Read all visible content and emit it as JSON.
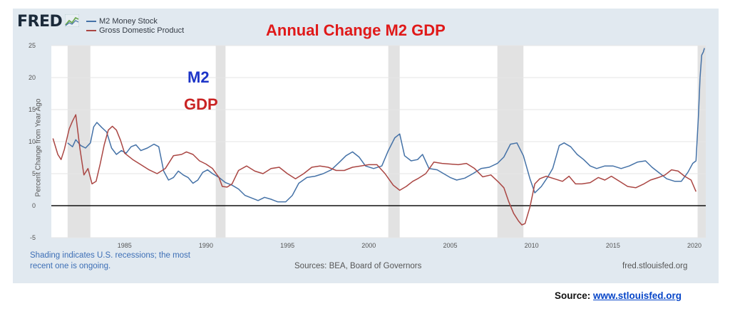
{
  "header": {
    "logo_text": "FRED",
    "title": "Annual Change M2 GDP"
  },
  "legend": [
    {
      "name": "M2 Money Stock",
      "color": "#4572a7"
    },
    {
      "name": "Gross Domestic Product",
      "color": "#aa4643"
    }
  ],
  "overlay_labels": {
    "m2": "M2",
    "gdp": "GDP"
  },
  "footer": {
    "note": "Shading indicates U.S. recessions; the most recent one is ongoing.",
    "sources": "Sources: BEA, Board of Governors",
    "fred_url": "fred.stlouisfed.org",
    "source_prefix": "Source:",
    "source_link": "www.stlouisfed.org"
  },
  "chart_data": {
    "type": "line",
    "title": "Annual Change M2 GDP",
    "ylabel": "Percent Change from Year Ago",
    "xlabel": "",
    "xlim": [
      1980.5,
      2020.7
    ],
    "ylim": [
      -5,
      25
    ],
    "x_ticks": [
      1985,
      1990,
      1995,
      2000,
      2005,
      2010,
      2015,
      2020
    ],
    "y_ticks": [
      -5,
      0,
      5,
      10,
      15,
      20,
      25
    ],
    "grid": true,
    "legend_position": "top-left",
    "recessions": [
      [
        1981.5,
        1982.9
      ],
      [
        1990.6,
        1991.2
      ],
      [
        2001.2,
        2001.9
      ],
      [
        2007.9,
        2009.5
      ],
      [
        2020.2,
        2020.7
      ]
    ],
    "series": [
      {
        "name": "M2 Money Stock",
        "color": "#4572a7",
        "points": [
          [
            1981.5,
            9.8
          ],
          [
            1981.8,
            9.2
          ],
          [
            1982.0,
            10.3
          ],
          [
            1982.3,
            9.4
          ],
          [
            1982.6,
            9.0
          ],
          [
            1982.9,
            9.8
          ],
          [
            1983.1,
            12.3
          ],
          [
            1983.3,
            13.0
          ],
          [
            1983.6,
            12.2
          ],
          [
            1983.9,
            11.5
          ],
          [
            1984.2,
            9.0
          ],
          [
            1984.5,
            8.0
          ],
          [
            1984.8,
            8.6
          ],
          [
            1985.1,
            8.2
          ],
          [
            1985.4,
            9.2
          ],
          [
            1985.7,
            9.5
          ],
          [
            1986.0,
            8.6
          ],
          [
            1986.4,
            9.0
          ],
          [
            1986.8,
            9.6
          ],
          [
            1987.1,
            9.2
          ],
          [
            1987.4,
            5.4
          ],
          [
            1987.7,
            4.0
          ],
          [
            1988.0,
            4.4
          ],
          [
            1988.3,
            5.4
          ],
          [
            1988.6,
            4.8
          ],
          [
            1988.9,
            4.4
          ],
          [
            1989.2,
            3.5
          ],
          [
            1989.5,
            4.0
          ],
          [
            1989.8,
            5.2
          ],
          [
            1990.1,
            5.6
          ],
          [
            1990.4,
            5.0
          ],
          [
            1990.8,
            4.4
          ],
          [
            1991.2,
            3.6
          ],
          [
            1991.6,
            3.2
          ],
          [
            1992.0,
            2.6
          ],
          [
            1992.4,
            1.6
          ],
          [
            1992.8,
            1.2
          ],
          [
            1993.2,
            0.8
          ],
          [
            1993.6,
            1.3
          ],
          [
            1994.0,
            1.0
          ],
          [
            1994.4,
            0.6
          ],
          [
            1994.9,
            0.6
          ],
          [
            1995.3,
            1.6
          ],
          [
            1995.7,
            3.5
          ],
          [
            1996.2,
            4.4
          ],
          [
            1996.7,
            4.6
          ],
          [
            1997.2,
            5.0
          ],
          [
            1997.7,
            5.6
          ],
          [
            1998.2,
            6.8
          ],
          [
            1998.6,
            7.8
          ],
          [
            1999.0,
            8.4
          ],
          [
            1999.4,
            7.6
          ],
          [
            1999.8,
            6.2
          ],
          [
            2000.3,
            5.8
          ],
          [
            2000.8,
            6.2
          ],
          [
            2001.2,
            8.6
          ],
          [
            2001.6,
            10.6
          ],
          [
            2001.9,
            11.2
          ],
          [
            2002.2,
            7.8
          ],
          [
            2002.6,
            7.0
          ],
          [
            2003.0,
            7.2
          ],
          [
            2003.3,
            8.0
          ],
          [
            2003.7,
            5.8
          ],
          [
            2004.2,
            5.6
          ],
          [
            2004.6,
            5.0
          ],
          [
            2005.0,
            4.4
          ],
          [
            2005.4,
            4.0
          ],
          [
            2005.9,
            4.3
          ],
          [
            2006.4,
            5.0
          ],
          [
            2006.9,
            5.8
          ],
          [
            2007.4,
            6.0
          ],
          [
            2007.9,
            6.6
          ],
          [
            2008.3,
            7.6
          ],
          [
            2008.7,
            9.6
          ],
          [
            2009.1,
            9.8
          ],
          [
            2009.5,
            7.8
          ],
          [
            2009.9,
            4.2
          ],
          [
            2010.2,
            2.0
          ],
          [
            2010.6,
            3.0
          ],
          [
            2011.0,
            4.5
          ],
          [
            2011.3,
            5.8
          ],
          [
            2011.7,
            9.4
          ],
          [
            2012.0,
            9.8
          ],
          [
            2012.4,
            9.2
          ],
          [
            2012.8,
            8.0
          ],
          [
            2013.2,
            7.2
          ],
          [
            2013.6,
            6.2
          ],
          [
            2014.0,
            5.8
          ],
          [
            2014.5,
            6.2
          ],
          [
            2015.0,
            6.2
          ],
          [
            2015.5,
            5.8
          ],
          [
            2016.0,
            6.2
          ],
          [
            2016.5,
            6.8
          ],
          [
            2017.0,
            7.0
          ],
          [
            2017.4,
            6.0
          ],
          [
            2017.9,
            5.0
          ],
          [
            2018.3,
            4.2
          ],
          [
            2018.8,
            3.8
          ],
          [
            2019.2,
            3.8
          ],
          [
            2019.6,
            5.2
          ],
          [
            2019.9,
            6.6
          ],
          [
            2020.1,
            7.0
          ],
          [
            2020.25,
            14.0
          ],
          [
            2020.35,
            20.0
          ],
          [
            2020.45,
            23.5
          ],
          [
            2020.55,
            24.0
          ],
          [
            2020.62,
            24.6
          ]
        ]
      },
      {
        "name": "Gross Domestic Product",
        "color": "#aa4643",
        "points": [
          [
            1980.6,
            10.5
          ],
          [
            1980.9,
            8.0
          ],
          [
            1981.1,
            7.2
          ],
          [
            1981.3,
            8.8
          ],
          [
            1981.6,
            12.0
          ],
          [
            1981.8,
            13.2
          ],
          [
            1982.0,
            14.2
          ],
          [
            1982.25,
            9.0
          ],
          [
            1982.5,
            4.8
          ],
          [
            1982.75,
            5.8
          ],
          [
            1983.0,
            3.4
          ],
          [
            1983.25,
            3.8
          ],
          [
            1983.5,
            6.5
          ],
          [
            1983.75,
            9.5
          ],
          [
            1984.0,
            11.8
          ],
          [
            1984.25,
            12.4
          ],
          [
            1984.5,
            11.8
          ],
          [
            1984.75,
            10.2
          ],
          [
            1985.0,
            8.2
          ],
          [
            1985.5,
            7.2
          ],
          [
            1986.0,
            6.4
          ],
          [
            1986.5,
            5.6
          ],
          [
            1987.0,
            5.0
          ],
          [
            1987.5,
            5.8
          ],
          [
            1988.0,
            7.8
          ],
          [
            1988.5,
            8.0
          ],
          [
            1988.8,
            8.4
          ],
          [
            1989.2,
            8.0
          ],
          [
            1989.6,
            7.0
          ],
          [
            1990.0,
            6.5
          ],
          [
            1990.4,
            5.8
          ],
          [
            1990.8,
            4.4
          ],
          [
            1991.0,
            3.0
          ],
          [
            1991.3,
            2.9
          ],
          [
            1991.6,
            3.4
          ],
          [
            1992.0,
            5.5
          ],
          [
            1992.5,
            6.2
          ],
          [
            1993.0,
            5.4
          ],
          [
            1993.5,
            5.0
          ],
          [
            1994.0,
            5.8
          ],
          [
            1994.5,
            6.0
          ],
          [
            1995.0,
            5.0
          ],
          [
            1995.5,
            4.2
          ],
          [
            1996.0,
            5.0
          ],
          [
            1996.5,
            6.0
          ],
          [
            1997.0,
            6.2
          ],
          [
            1997.5,
            6.0
          ],
          [
            1998.0,
            5.5
          ],
          [
            1998.5,
            5.5
          ],
          [
            1999.0,
            6.0
          ],
          [
            1999.5,
            6.2
          ],
          [
            2000.0,
            6.4
          ],
          [
            2000.5,
            6.4
          ],
          [
            2001.0,
            5.0
          ],
          [
            2001.5,
            3.2
          ],
          [
            2001.9,
            2.4
          ],
          [
            2002.3,
            3.0
          ],
          [
            2002.7,
            3.8
          ],
          [
            2003.0,
            4.2
          ],
          [
            2003.5,
            5.0
          ],
          [
            2004.0,
            6.8
          ],
          [
            2004.5,
            6.6
          ],
          [
            2005.0,
            6.5
          ],
          [
            2005.5,
            6.4
          ],
          [
            2006.0,
            6.6
          ],
          [
            2006.5,
            5.8
          ],
          [
            2007.0,
            4.5
          ],
          [
            2007.5,
            4.8
          ],
          [
            2008.0,
            3.6
          ],
          [
            2008.3,
            2.8
          ],
          [
            2008.6,
            0.6
          ],
          [
            2008.9,
            -1.2
          ],
          [
            2009.2,
            -2.4
          ],
          [
            2009.4,
            -3.0
          ],
          [
            2009.6,
            -2.8
          ],
          [
            2009.9,
            -0.2
          ],
          [
            2010.2,
            3.4
          ],
          [
            2010.5,
            4.2
          ],
          [
            2010.9,
            4.6
          ],
          [
            2011.4,
            4.2
          ],
          [
            2011.9,
            3.8
          ],
          [
            2012.3,
            4.6
          ],
          [
            2012.7,
            3.4
          ],
          [
            2013.1,
            3.4
          ],
          [
            2013.6,
            3.6
          ],
          [
            2014.1,
            4.4
          ],
          [
            2014.5,
            4.0
          ],
          [
            2014.9,
            4.6
          ],
          [
            2015.4,
            3.8
          ],
          [
            2015.9,
            3.0
          ],
          [
            2016.4,
            2.8
          ],
          [
            2016.9,
            3.4
          ],
          [
            2017.3,
            4.0
          ],
          [
            2017.8,
            4.4
          ],
          [
            2018.2,
            4.8
          ],
          [
            2018.6,
            5.6
          ],
          [
            2019.0,
            5.4
          ],
          [
            2019.4,
            4.6
          ],
          [
            2019.8,
            4.0
          ],
          [
            2020.1,
            2.2
          ]
        ]
      }
    ]
  }
}
